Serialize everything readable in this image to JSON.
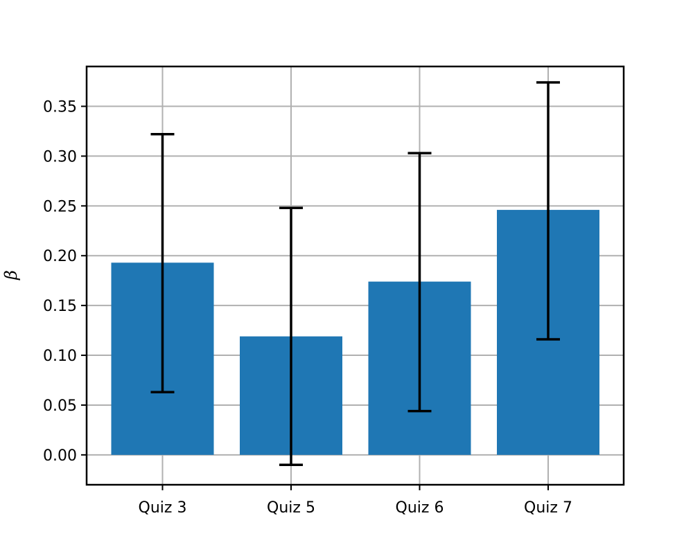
{
  "chart_data": {
    "type": "bar",
    "title": "",
    "xlabel": "",
    "ylabel": "β",
    "categories": [
      "Quiz 3",
      "Quiz 5",
      "Quiz 6",
      "Quiz 7"
    ],
    "values": [
      0.193,
      0.119,
      0.174,
      0.246
    ],
    "error_low": [
      0.063,
      -0.01,
      0.044,
      0.116
    ],
    "error_high": [
      0.322,
      0.248,
      0.303,
      0.374
    ],
    "ylim": [
      -0.03,
      0.39
    ],
    "yticks": [
      "0.00",
      "0.05",
      "0.10",
      "0.15",
      "0.20",
      "0.25",
      "0.30",
      "0.35"
    ],
    "grid": true,
    "bar_color": "#1f77b4",
    "error_color": "#000000",
    "grid_color": "#b0b0b0"
  }
}
